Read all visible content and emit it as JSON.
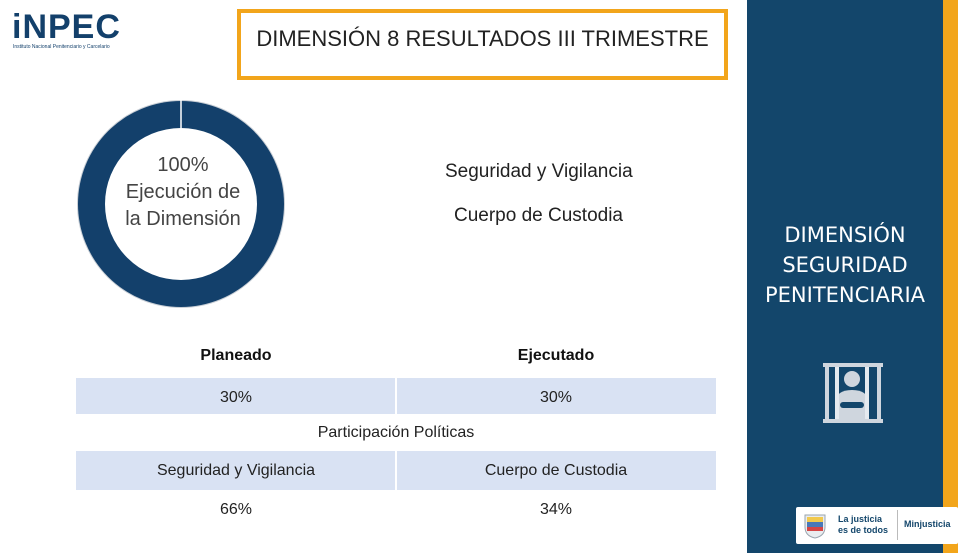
{
  "logo": {
    "name": "iNPEC",
    "subtitle": "Instituto Nacional Penitenciario y Carcelario"
  },
  "title": "DIMENSIÓN 8  RESULTADOS  III TRIMESTRE",
  "donut": {
    "percent_label": "100%",
    "caption": "Ejecución de la Dimensión",
    "execution_fraction": 1.0,
    "color": "#13406b"
  },
  "labels": {
    "line1": "Seguridad y Vigilancia",
    "line2": "Cuerpo de Custodia"
  },
  "plan_table": {
    "headers": [
      "Planeado",
      "Ejecutado"
    ],
    "values": [
      "30%",
      "30%"
    ]
  },
  "participation": {
    "title": "Participación Políticas",
    "headers": [
      "Seguridad y Vigilancia",
      "Cuerpo de Custodia"
    ],
    "values": [
      "66%",
      "34%"
    ]
  },
  "panel": {
    "text": "DIMENSIÓN SEGURIDAD PENITENCIARIA",
    "icon": "prison-inmate-icon",
    "bg": "#13466b",
    "accent": "#f2a51b"
  },
  "footer": {
    "brand": "La justicia\nes de todos",
    "ministry": "Minjusticia"
  }
}
